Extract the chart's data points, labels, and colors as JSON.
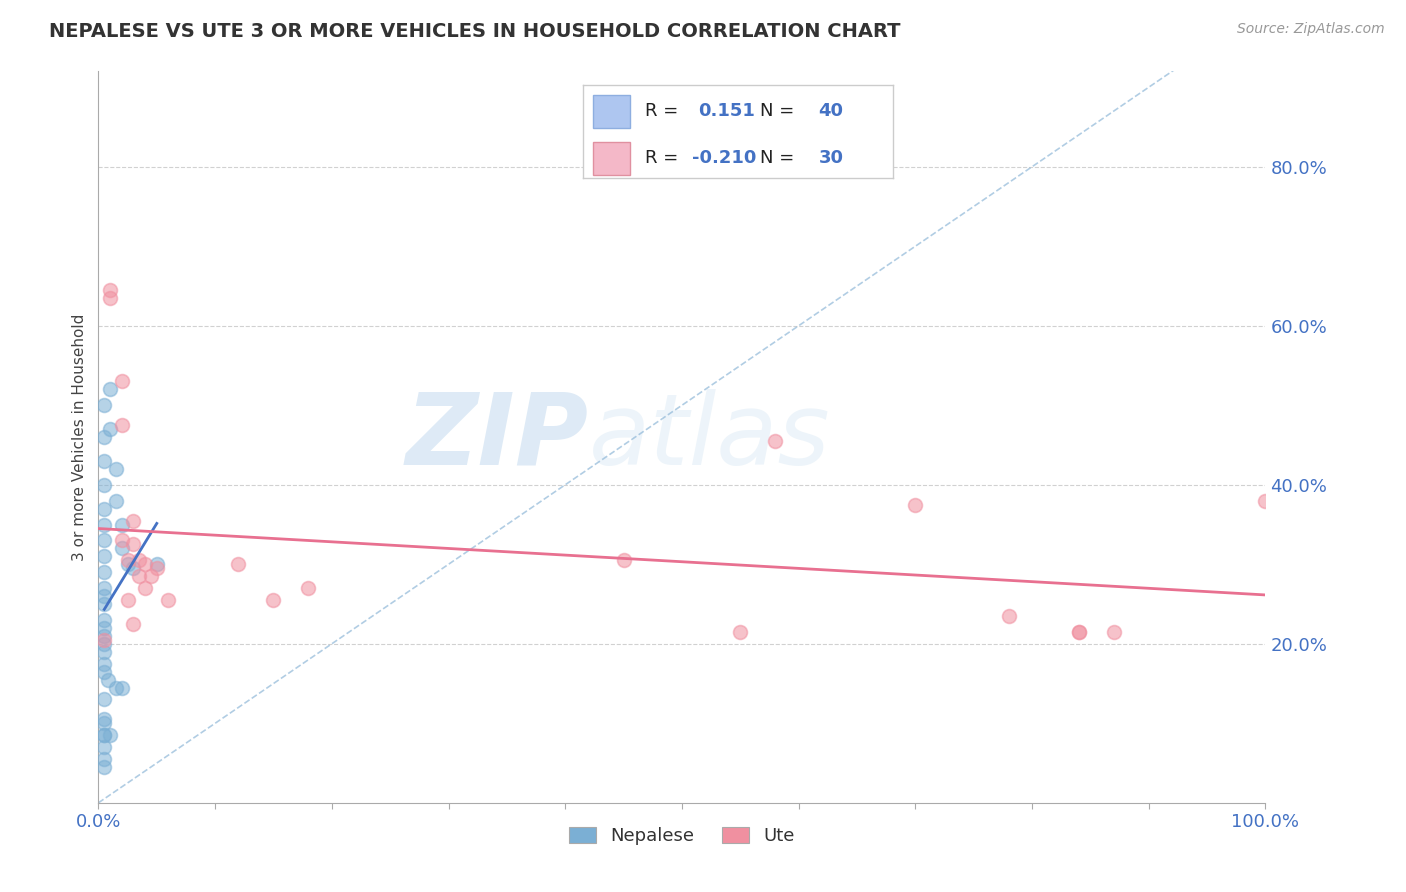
{
  "title": "NEPALESE VS UTE 3 OR MORE VEHICLES IN HOUSEHOLD CORRELATION CHART",
  "source": "Source: ZipAtlas.com",
  "ylabel": "3 or more Vehicles in Household",
  "xlim": [
    0.0,
    1.0
  ],
  "ylim": [
    0.0,
    0.92
  ],
  "ytick_labels": [
    "20.0%",
    "40.0%",
    "60.0%",
    "80.0%"
  ],
  "ytick_values": [
    0.2,
    0.4,
    0.6,
    0.8
  ],
  "legend_entries": [
    {
      "color": "#aec6f0",
      "border": "#8eaee0",
      "R": "0.151",
      "N": "40"
    },
    {
      "color": "#f4b8c8",
      "border": "#e090a0",
      "R": "-0.210",
      "N": "30"
    }
  ],
  "nepalese_color": "#7bafd4",
  "ute_color": "#f090a0",
  "nepalese_line_color": "#4472C4",
  "ute_line_color": "#E87090",
  "diagonal_color": "#90b8d8",
  "nepalese_scatter": [
    [
      0.005,
      0.5
    ],
    [
      0.005,
      0.46
    ],
    [
      0.005,
      0.43
    ],
    [
      0.005,
      0.4
    ],
    [
      0.005,
      0.37
    ],
    [
      0.005,
      0.35
    ],
    [
      0.005,
      0.33
    ],
    [
      0.005,
      0.31
    ],
    [
      0.005,
      0.29
    ],
    [
      0.005,
      0.27
    ],
    [
      0.005,
      0.26
    ],
    [
      0.005,
      0.25
    ],
    [
      0.005,
      0.23
    ],
    [
      0.005,
      0.22
    ],
    [
      0.005,
      0.21
    ],
    [
      0.005,
      0.2
    ],
    [
      0.005,
      0.19
    ],
    [
      0.005,
      0.175
    ],
    [
      0.005,
      0.165
    ],
    [
      0.008,
      0.155
    ],
    [
      0.01,
      0.52
    ],
    [
      0.01,
      0.47
    ],
    [
      0.015,
      0.42
    ],
    [
      0.015,
      0.38
    ],
    [
      0.02,
      0.35
    ],
    [
      0.02,
      0.32
    ],
    [
      0.025,
      0.3
    ],
    [
      0.03,
      0.295
    ],
    [
      0.05,
      0.3
    ],
    [
      0.005,
      0.13
    ],
    [
      0.005,
      0.1
    ],
    [
      0.005,
      0.085
    ],
    [
      0.005,
      0.07
    ],
    [
      0.005,
      0.055
    ],
    [
      0.005,
      0.045
    ],
    [
      0.005,
      0.105
    ],
    [
      0.015,
      0.145
    ],
    [
      0.02,
      0.145
    ],
    [
      0.005,
      0.085
    ],
    [
      0.01,
      0.085
    ]
  ],
  "ute_scatter": [
    [
      0.01,
      0.645
    ],
    [
      0.01,
      0.635
    ],
    [
      0.02,
      0.53
    ],
    [
      0.02,
      0.475
    ],
    [
      0.03,
      0.355
    ],
    [
      0.03,
      0.325
    ],
    [
      0.035,
      0.305
    ],
    [
      0.035,
      0.285
    ],
    [
      0.04,
      0.27
    ],
    [
      0.04,
      0.3
    ],
    [
      0.045,
      0.285
    ],
    [
      0.05,
      0.295
    ],
    [
      0.06,
      0.255
    ],
    [
      0.12,
      0.3
    ],
    [
      0.15,
      0.255
    ],
    [
      0.18,
      0.27
    ],
    [
      0.02,
      0.33
    ],
    [
      0.025,
      0.305
    ],
    [
      0.025,
      0.255
    ],
    [
      0.03,
      0.225
    ],
    [
      0.45,
      0.305
    ],
    [
      0.55,
      0.215
    ],
    [
      0.58,
      0.455
    ],
    [
      0.7,
      0.375
    ],
    [
      0.78,
      0.235
    ],
    [
      0.84,
      0.215
    ],
    [
      0.84,
      0.215
    ],
    [
      0.87,
      0.215
    ],
    [
      1.0,
      0.38
    ],
    [
      0.005,
      0.205
    ]
  ],
  "watermark_zip": "ZIP",
  "watermark_atlas": "atlas",
  "background_color": "#ffffff",
  "grid_color": "#cccccc",
  "tick_color": "#4472C4",
  "title_color": "#333333",
  "title_fontsize": 14,
  "ylabel_fontsize": 11
}
